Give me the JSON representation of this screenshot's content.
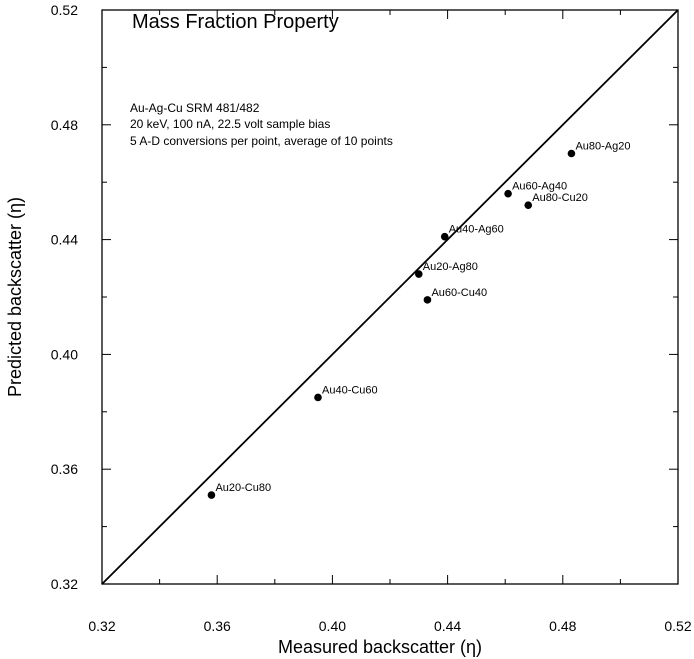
{
  "chart_data": {
    "type": "scatter",
    "title": "Mass Fraction Property",
    "annotations": [
      "Au-Ag-Cu SRM 481/482",
      "20 keV, 100 nA, 22.5 volt sample bias",
      "5 A-D conversions per point, average of 10 points"
    ],
    "xlabel": "Measured backscatter (η)",
    "ylabel": "Predicted backscatter (η)",
    "xlim": [
      0.32,
      0.52
    ],
    "ylim": [
      0.32,
      0.52
    ],
    "x_ticks": [
      "0.32",
      "0.36",
      "0.40",
      "0.44",
      "0.48",
      "0.52"
    ],
    "y_ticks": [
      "0.32",
      "0.36",
      "0.40",
      "0.44",
      "0.48",
      "0.52"
    ],
    "reference_line": {
      "type": "y=x",
      "from": 0.32,
      "to": 0.52
    },
    "grid": false,
    "points": [
      {
        "label": "Au20-Cu80",
        "x": 0.358,
        "y": 0.351
      },
      {
        "label": "Au40-Cu60",
        "x": 0.395,
        "y": 0.385
      },
      {
        "label": "Au20-Ag80",
        "x": 0.43,
        "y": 0.428
      },
      {
        "label": "Au60-Cu40",
        "x": 0.433,
        "y": 0.419
      },
      {
        "label": "Au40-Ag60",
        "x": 0.439,
        "y": 0.441
      },
      {
        "label": "Au60-Ag40",
        "x": 0.461,
        "y": 0.456
      },
      {
        "label": "Au80-Cu20",
        "x": 0.468,
        "y": 0.452
      },
      {
        "label": "Au80-Ag20",
        "x": 0.483,
        "y": 0.47
      }
    ]
  }
}
